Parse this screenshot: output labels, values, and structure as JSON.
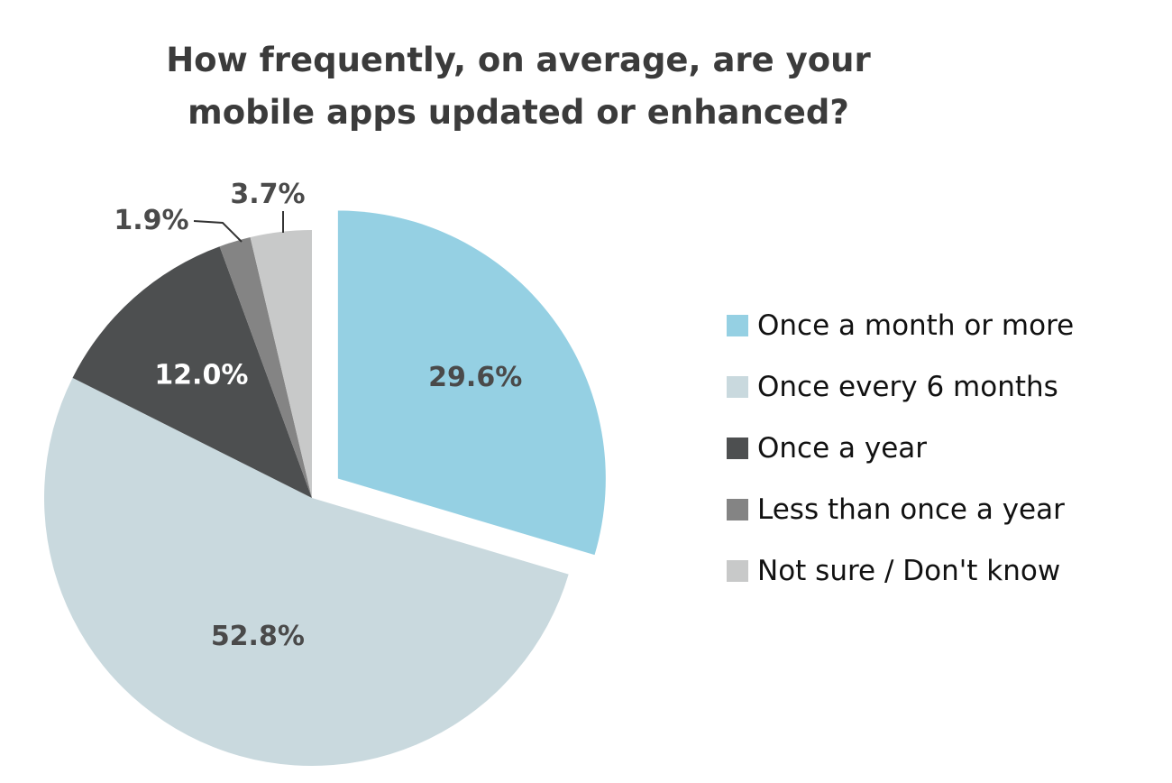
{
  "chart_data": {
    "type": "pie",
    "title": "How frequently, on average, are your mobile apps updated or enhanced?",
    "title_lines": [
      "How frequently, on average, are your",
      "mobile apps updated or enhanced?"
    ],
    "slices": [
      {
        "label": "Once a month or more",
        "value": 29.6,
        "display": "29.6%",
        "color": "#95d0e3",
        "exploded": true,
        "label_color": "#4a4a4a"
      },
      {
        "label": "Once every 6 months",
        "value": 52.8,
        "display": "52.8%",
        "color": "#c9d9de",
        "exploded": false,
        "label_color": "#4a4a4a"
      },
      {
        "label": "Once a year",
        "value": 12.0,
        "display": "12.0%",
        "color": "#4d4f50",
        "exploded": false,
        "label_color": "#ffffff"
      },
      {
        "label": "Less than once a year",
        "value": 1.9,
        "display": "1.9%",
        "color": "#848484",
        "exploded": false,
        "label_color": "#4a4a4a"
      },
      {
        "label": "Not sure / Don't know",
        "value": 3.7,
        "display": "3.7%",
        "color": "#c8c9c9",
        "exploded": false,
        "label_color": "#4a4a4a"
      }
    ],
    "start": "12 o'clock",
    "direction": "clockwise",
    "legend_position": "right"
  }
}
